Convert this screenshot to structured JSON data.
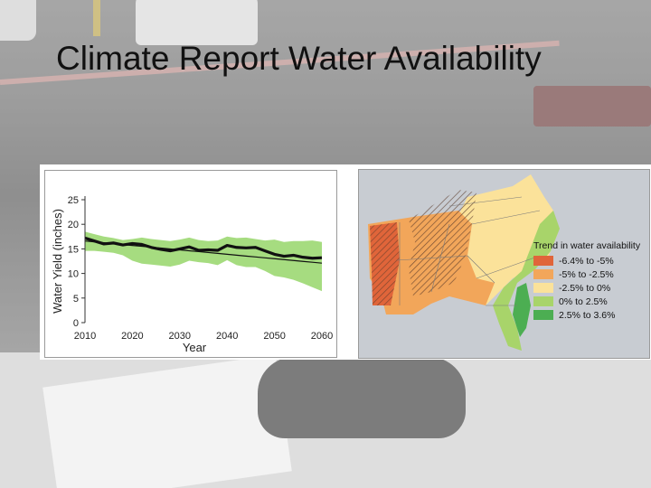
{
  "slide": {
    "title": "Climate Report Water Availability"
  },
  "chart_data": [
    {
      "type": "line",
      "xlabel": "Year",
      "ylabel": "Water Yield (inches)",
      "xlim": [
        2010,
        2060
      ],
      "ylim": [
        0,
        25
      ],
      "xticks": [
        2010,
        2020,
        2030,
        2040,
        2050,
        2060
      ],
      "yticks": [
        0,
        5,
        10,
        15,
        20,
        25
      ],
      "grid": false,
      "x": [
        2010,
        2012,
        2014,
        2016,
        2018,
        2020,
        2022,
        2024,
        2026,
        2028,
        2030,
        2032,
        2034,
        2036,
        2038,
        2040,
        2042,
        2044,
        2046,
        2048,
        2050,
        2052,
        2054,
        2056,
        2058,
        2060
      ],
      "series": [
        {
          "role": "projection",
          "color": "#111111",
          "values": [
            17.2,
            16.6,
            16.0,
            16.2,
            15.8,
            16.1,
            15.9,
            15.3,
            14.9,
            14.6,
            15.0,
            15.4,
            14.7,
            14.8,
            14.7,
            15.7,
            15.3,
            15.2,
            15.3,
            14.6,
            13.9,
            13.5,
            13.7,
            13.3,
            13.1,
            13.2
          ]
        },
        {
          "role": "trend",
          "color": "#111111",
          "values": [
            16.6,
            16.42,
            16.24,
            16.06,
            15.88,
            15.7,
            15.52,
            15.34,
            15.16,
            14.98,
            14.8,
            14.62,
            14.44,
            14.26,
            14.08,
            13.9,
            13.72,
            13.54,
            13.36,
            13.18,
            13.0,
            12.82,
            12.64,
            12.46,
            12.28,
            12.1
          ]
        },
        {
          "role": "range",
          "color": "#a6dc80",
          "upper": [
            18.5,
            18.0,
            17.5,
            17.2,
            16.8,
            17.0,
            17.3,
            17.0,
            16.8,
            16.6,
            16.9,
            17.3,
            16.8,
            16.6,
            16.7,
            17.5,
            17.2,
            17.3,
            17.0,
            16.7,
            16.9,
            16.4,
            16.6,
            16.6,
            16.7,
            16.4
          ],
          "lower": [
            14.6,
            14.6,
            14.4,
            14.2,
            13.7,
            12.6,
            12.0,
            11.8,
            11.6,
            11.4,
            11.8,
            12.6,
            12.3,
            12.1,
            11.7,
            12.7,
            11.7,
            11.3,
            11.3,
            10.5,
            9.5,
            9.2,
            8.7,
            8.0,
            7.2,
            6.4
          ]
        }
      ]
    },
    {
      "type": "map",
      "legend": {
        "title": "Trend in water availability",
        "placement": "right",
        "items": [
          {
            "label": "-6.4% to -5%",
            "color": "#e0653a"
          },
          {
            "label": "-5% to -2.5%",
            "color": "#f2a65a"
          },
          {
            "label": "-2.5% to 0%",
            "color": "#fbe29a"
          },
          {
            "label": "0% to 2.5%",
            "color": "#a8d46a"
          },
          {
            "label": "2.5% to 3.6%",
            "color": "#4cae52"
          }
        ]
      }
    }
  ]
}
